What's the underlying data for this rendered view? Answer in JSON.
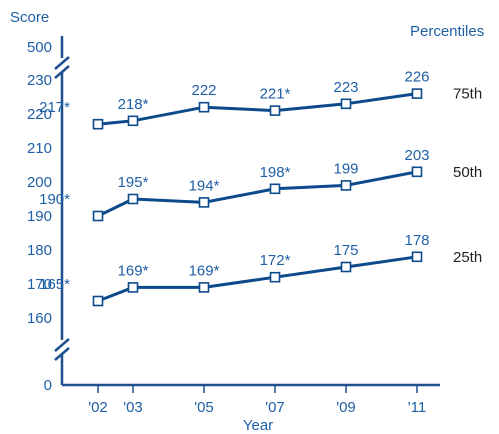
{
  "chart_data": {
    "type": "line",
    "ylabel": "Score",
    "xlabel": "Year",
    "legend_title": "Percentiles",
    "x_categories": [
      "'02",
      "'03",
      "'05",
      "'07",
      "'09",
      "'11"
    ],
    "x_values": [
      2002,
      2003,
      2005,
      2007,
      2009,
      2011
    ],
    "y_ticks": [
      160,
      170,
      180,
      190,
      200,
      210,
      220,
      230
    ],
    "y_ticks_extra": [
      "500",
      "0"
    ],
    "ylim": [
      160,
      230
    ],
    "axis_break": true,
    "grid": false,
    "series": [
      {
        "name": "75th",
        "values": [
          217,
          218,
          222,
          221,
          223,
          226
        ],
        "labels": [
          "217*",
          "218*",
          "222",
          "221*",
          "223",
          "226"
        ]
      },
      {
        "name": "50th",
        "values": [
          190,
          195,
          194,
          198,
          199,
          203
        ],
        "labels": [
          "190*",
          "195*",
          "194*",
          "198*",
          "199",
          "203"
        ]
      },
      {
        "name": "25th",
        "values": [
          165,
          169,
          169,
          172,
          175,
          178
        ],
        "labels": [
          "165*",
          "169*",
          "169*",
          "172*",
          "175",
          "178"
        ]
      }
    ]
  }
}
